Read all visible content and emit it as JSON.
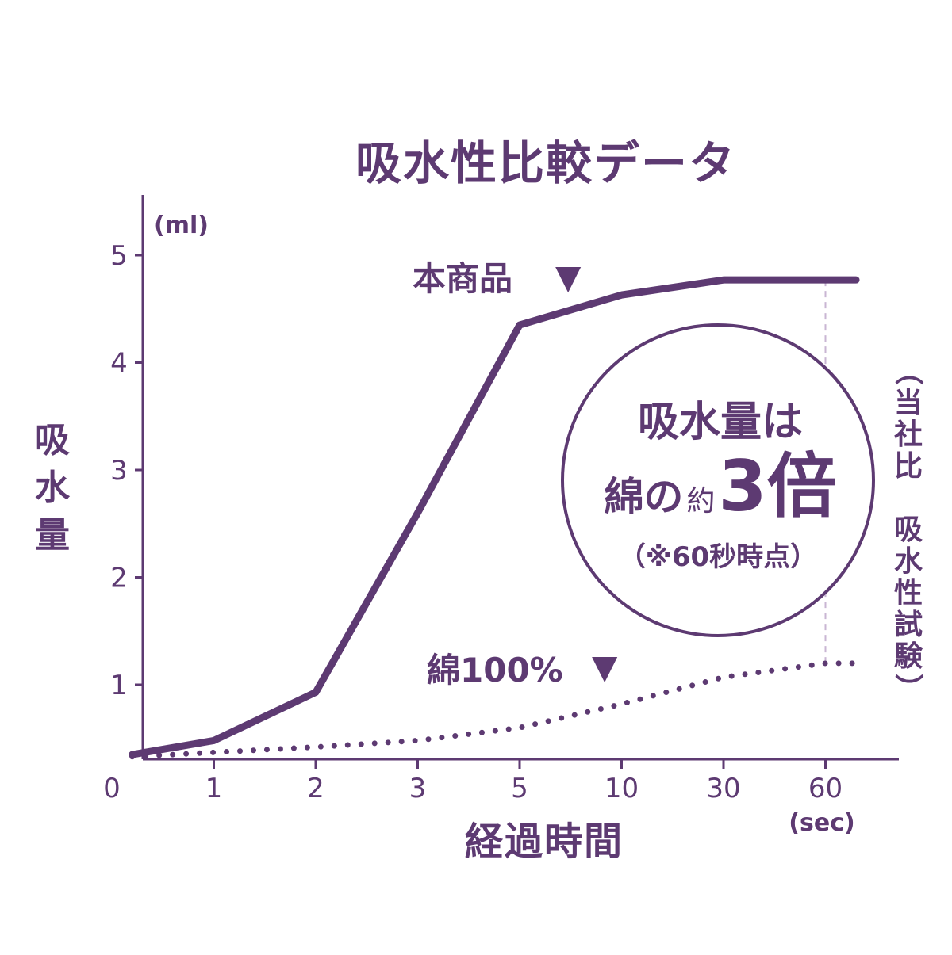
{
  "colors": {
    "ink": "#5d3a72",
    "guide": "#c9b6d3",
    "background": "#ffffff"
  },
  "chart_data": {
    "type": "line",
    "title": "吸水性比較データ",
    "ylabel": "吸水量",
    "yunit": "(ml)",
    "xlabel": "経過時間",
    "xunit": "(sec)",
    "x": [
      "0",
      "1",
      "2",
      "3",
      "5",
      "10",
      "30",
      "60"
    ],
    "y_ticks": [
      "1",
      "2",
      "3",
      "4",
      "5"
    ],
    "ylim": [
      0.3,
      5.5
    ],
    "grid": false,
    "series": [
      {
        "name": "本商品",
        "label": "本商品",
        "marker": "▼",
        "style": "solid",
        "points": [
          [
            0.2,
            0.35
          ],
          [
            1,
            0.48
          ],
          [
            2,
            0.93
          ],
          [
            3,
            2.6
          ],
          [
            4,
            4.35
          ],
          [
            5,
            4.63
          ],
          [
            6,
            4.77
          ],
          [
            7.3,
            4.77
          ]
        ]
      },
      {
        "name": "綿100%",
        "label": "綿100%",
        "marker": "▼",
        "style": "dotted",
        "points": [
          [
            0.2,
            0.33
          ],
          [
            1,
            0.37
          ],
          [
            2,
            0.42
          ],
          [
            3,
            0.48
          ],
          [
            4,
            0.6
          ],
          [
            5,
            0.82
          ],
          [
            6,
            1.07
          ],
          [
            7,
            1.2
          ],
          [
            7.3,
            1.2
          ]
        ]
      }
    ],
    "callout": {
      "line1": "吸水量は",
      "line2a": "綿の",
      "line2b": "約",
      "line2c": "3倍",
      "line3": "（※60秒時点）"
    },
    "side_note": [
      "（",
      "当",
      "社",
      "比",
      "",
      "吸",
      "水",
      "性",
      "試",
      "験",
      "）"
    ]
  }
}
